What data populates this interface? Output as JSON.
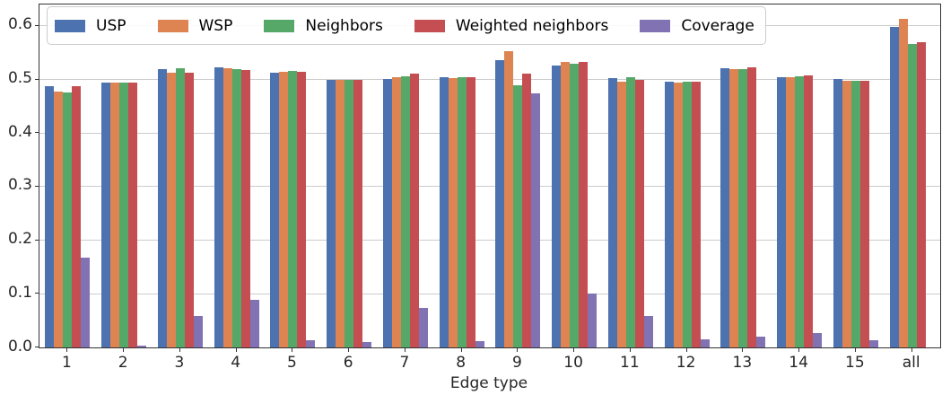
{
  "figure": {
    "background": "#ffffff",
    "grid_color": "#cccccc",
    "spine_color": "#333333"
  },
  "chart_data": {
    "type": "bar",
    "title": "",
    "xlabel": "Edge type",
    "ylabel": "",
    "ylim": [
      0,
      0.64
    ],
    "grid": true,
    "legend_position": "upper left",
    "y_ticks": [
      "0.0",
      "0.1",
      "0.2",
      "0.3",
      "0.4",
      "0.5",
      "0.6"
    ],
    "y_tick_values": [
      0.0,
      0.1,
      0.2,
      0.3,
      0.4,
      0.5,
      0.6
    ],
    "categories": [
      "1",
      "2",
      "3",
      "4",
      "5",
      "6",
      "7",
      "8",
      "9",
      "10",
      "11",
      "12",
      "13",
      "14",
      "15",
      "all"
    ],
    "series": [
      {
        "name": "USP",
        "color": "#4C72B0",
        "values": [
          0.487,
          0.494,
          0.52,
          0.522,
          0.513,
          0.499,
          0.501,
          0.505,
          0.536,
          0.526,
          0.503,
          0.496,
          0.521,
          0.505,
          0.501,
          0.598
        ]
      },
      {
        "name": "WSP",
        "color": "#DD8452",
        "values": [
          0.477,
          0.494,
          0.512,
          0.521,
          0.515,
          0.499,
          0.505,
          0.502,
          0.553,
          0.533,
          0.496,
          0.495,
          0.519,
          0.504,
          0.498,
          0.614
        ]
      },
      {
        "name": "Neighbors",
        "color": "#55A868",
        "values": [
          0.476,
          0.494,
          0.521,
          0.52,
          0.516,
          0.499,
          0.506,
          0.505,
          0.49,
          0.529,
          0.504,
          0.496,
          0.52,
          0.506,
          0.497,
          0.567
        ]
      },
      {
        "name": "Weighted neighbors",
        "color": "#C44E52",
        "values": [
          0.488,
          0.494,
          0.513,
          0.517,
          0.515,
          0.5,
          0.511,
          0.505,
          0.511,
          0.533,
          0.5,
          0.496,
          0.523,
          0.508,
          0.497,
          0.57
        ]
      },
      {
        "name": "Coverage",
        "color": "#8172B3",
        "values": [
          0.167,
          0.004,
          0.058,
          0.088,
          0.013,
          0.01,
          0.073,
          0.012,
          0.474,
          0.101,
          0.058,
          0.015,
          0.02,
          0.026,
          0.013,
          0.0
        ]
      }
    ]
  }
}
